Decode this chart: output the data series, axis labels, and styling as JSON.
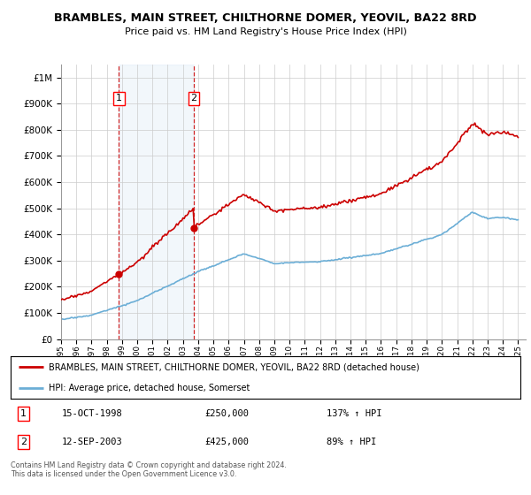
{
  "title": "BRAMBLES, MAIN STREET, CHILTHORNE DOMER, YEOVIL, BA22 8RD",
  "subtitle": "Price paid vs. HM Land Registry's House Price Index (HPI)",
  "legend_line1": "BRAMBLES, MAIN STREET, CHILTHORNE DOMER, YEOVIL, BA22 8RD (detached house)",
  "legend_line2": "HPI: Average price, detached house, Somerset",
  "footer": "Contains HM Land Registry data © Crown copyright and database right 2024.\nThis data is licensed under the Open Government Licence v3.0.",
  "sale1_date": "15-OCT-1998",
  "sale1_price": 250000,
  "sale1_hpi": "137% ↑ HPI",
  "sale2_date": "12-SEP-2003",
  "sale2_price": 425000,
  "sale2_hpi": "89% ↑ HPI",
  "sale1_x": 1998.79,
  "sale2_x": 2003.71,
  "ylim": [
    0,
    1050000
  ],
  "xlim": [
    1995.0,
    2025.5
  ],
  "hpi_color": "#6baed6",
  "price_color": "#cc0000",
  "background_color": "#ffffff",
  "grid_color": "#cccccc",
  "shade_color": "#ddeeff"
}
